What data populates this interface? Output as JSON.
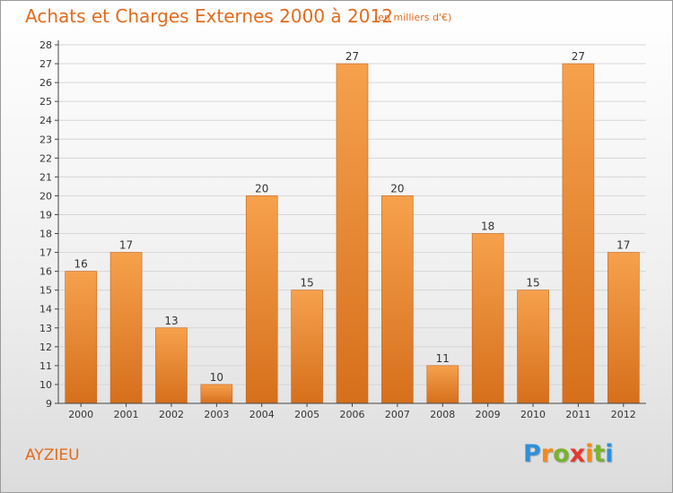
{
  "title": "Achats et Charges Externes 2000 à 2012",
  "subtitle": "(en milliers d'€)",
  "town": "AYZIEU",
  "logo": {
    "letters": [
      "P",
      "r",
      "o",
      "x",
      "i",
      "t",
      "i"
    ]
  },
  "colors": {
    "accent": "#e36b1c",
    "bar_top": "#f6a14d",
    "bar_bottom": "#d66f1c",
    "grid": "#d6d6d6",
    "axis": "#444444",
    "logo_blue": "#2f8fd8",
    "logo_orange": "#f08a1c",
    "logo_green": "#7ab32e",
    "logo_red": "#e23a2e"
  },
  "chart_data": {
    "type": "bar",
    "title": "Achats et Charges Externes 2000 à 2012",
    "subtitle": "(en milliers d'€)",
    "categories": [
      "2000",
      "2001",
      "2002",
      "2003",
      "2004",
      "2005",
      "2006",
      "2007",
      "2008",
      "2009",
      "2010",
      "2011",
      "2012"
    ],
    "values": [
      16,
      17,
      13,
      10,
      20,
      15,
      27,
      20,
      11,
      18,
      15,
      27,
      17
    ],
    "ylim": [
      9,
      28
    ],
    "yticks": [
      9,
      10,
      11,
      12,
      13,
      14,
      15,
      16,
      17,
      18,
      19,
      20,
      21,
      22,
      23,
      24,
      25,
      26,
      27,
      28
    ],
    "grid": true,
    "legend": "none"
  }
}
